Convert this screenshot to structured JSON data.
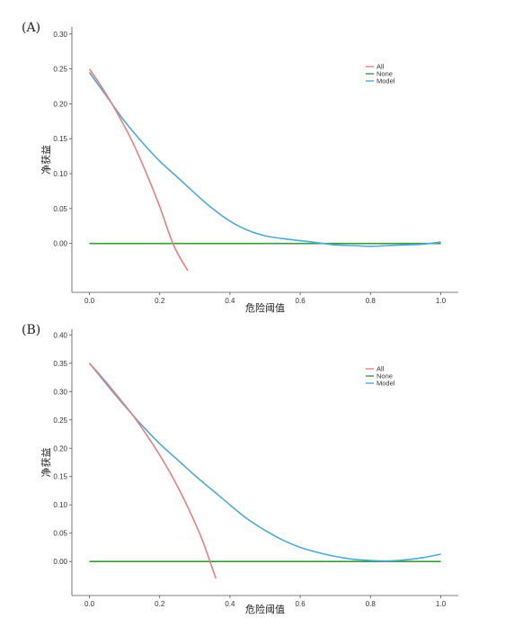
{
  "chart_data": [
    {
      "type": "line",
      "panel_label": "(A)",
      "xlabel": "危险阈值",
      "ylabel": "净获益",
      "xlim": [
        -0.05,
        1.05
      ],
      "ylim": [
        -0.07,
        0.31
      ],
      "xticks": [
        "0.0",
        "0.2",
        "0.4",
        "0.6",
        "0.8",
        "1.0"
      ],
      "xtick_values": [
        0,
        0.2,
        0.4,
        0.6,
        0.8,
        1.0
      ],
      "yticks": [
        "0.00",
        "0.05",
        "0.10",
        "0.15",
        "0.20",
        "0.25",
        "0.30"
      ],
      "ytick_values": [
        0,
        0.05,
        0.1,
        0.15,
        0.2,
        0.25,
        0.3
      ],
      "legend_position": "top-right",
      "series": [
        {
          "name": "All",
          "color": "#f07c7c",
          "x": [
            0.0,
            0.04,
            0.08,
            0.12,
            0.16,
            0.2,
            0.24,
            0.28
          ],
          "y": [
            0.25,
            0.22,
            0.186,
            0.148,
            0.103,
            0.053,
            -0.003,
            -0.039
          ]
        },
        {
          "name": "None",
          "color": "#3a9a3a",
          "x": [
            0.0,
            1.0
          ],
          "y": [
            0.0,
            0.0
          ]
        },
        {
          "name": "Model",
          "color": "#4aabd9",
          "x": [
            0.0,
            0.05,
            0.1,
            0.15,
            0.2,
            0.25,
            0.3,
            0.35,
            0.4,
            0.45,
            0.5,
            0.55,
            0.6,
            0.65,
            0.7,
            0.75,
            0.8,
            0.85,
            0.9,
            0.95,
            1.0
          ],
          "y": [
            0.245,
            0.21,
            0.175,
            0.145,
            0.118,
            0.095,
            0.072,
            0.05,
            0.032,
            0.019,
            0.011,
            0.007,
            0.004,
            0.001,
            -0.002,
            -0.003,
            -0.004,
            -0.003,
            -0.002,
            -0.001,
            0.002
          ]
        }
      ]
    },
    {
      "type": "line",
      "panel_label": "(B)",
      "xlabel": "危险阈值",
      "ylabel": "净获益",
      "xlim": [
        -0.05,
        1.05
      ],
      "ylim": [
        -0.06,
        0.41
      ],
      "xticks": [
        "0.0",
        "0.2",
        "0.4",
        "0.6",
        "0.8",
        "1.0"
      ],
      "xtick_values": [
        0,
        0.2,
        0.4,
        0.6,
        0.8,
        1.0
      ],
      "yticks": [
        "0.00",
        "0.05",
        "0.10",
        "0.15",
        "0.20",
        "0.25",
        "0.30",
        "0.35",
        "0.40"
      ],
      "ytick_values": [
        0,
        0.05,
        0.1,
        0.15,
        0.2,
        0.25,
        0.3,
        0.35,
        0.4
      ],
      "legend_position": "top-right",
      "series": [
        {
          "name": "All",
          "color": "#f07c7c",
          "x": [
            0.0,
            0.04,
            0.08,
            0.12,
            0.16,
            0.2,
            0.24,
            0.28,
            0.32,
            0.36
          ],
          "y": [
            0.35,
            0.322,
            0.292,
            0.261,
            0.226,
            0.188,
            0.145,
            0.096,
            0.04,
            -0.03
          ]
        },
        {
          "name": "None",
          "color": "#3a9a3a",
          "x": [
            0.0,
            1.0
          ],
          "y": [
            0.0,
            0.0
          ]
        },
        {
          "name": "Model",
          "color": "#4aabd9",
          "x": [
            0.0,
            0.05,
            0.1,
            0.15,
            0.2,
            0.25,
            0.3,
            0.35,
            0.4,
            0.45,
            0.5,
            0.55,
            0.6,
            0.65,
            0.7,
            0.75,
            0.8,
            0.85,
            0.9,
            0.95,
            1.0
          ],
          "y": [
            0.35,
            0.312,
            0.275,
            0.24,
            0.208,
            0.18,
            0.152,
            0.126,
            0.1,
            0.075,
            0.055,
            0.038,
            0.025,
            0.016,
            0.009,
            0.004,
            0.002,
            0.001,
            0.003,
            0.007,
            0.013
          ]
        }
      ]
    }
  ]
}
